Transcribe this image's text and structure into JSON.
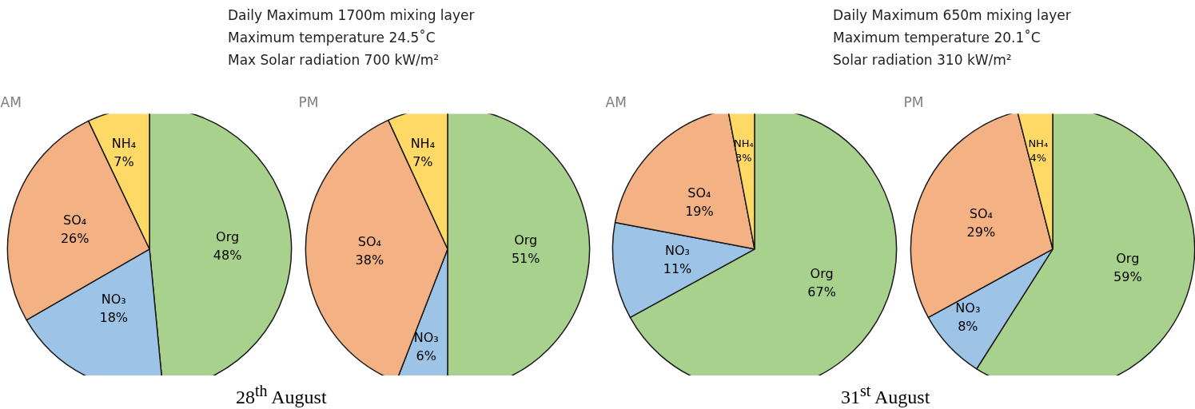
{
  "chart_data": [
    {
      "type": "pie",
      "title": "AM",
      "categories": [
        "Org",
        "NO₃",
        "SO₄",
        "NH₄"
      ],
      "values": [
        48,
        18,
        26,
        7
      ],
      "value_labels": [
        "48%",
        "18%",
        "26%",
        "7%"
      ],
      "colors": [
        "#a9d18e",
        "#9dc3e6",
        "#f4b183",
        "#ffd966"
      ],
      "legend": false,
      "annotations": [
        "Daily Maximum 1700m mixing layer",
        "Maximum temperature 24.5˚C",
        "Max Solar radiation 700 kW/m²",
        "28$^{th}$ August"
      ]
    },
    {
      "type": "pie",
      "title": "PM",
      "categories": [
        "Org",
        "NO₃",
        "SO₄",
        "NH₄"
      ],
      "values": [
        51,
        6,
        38,
        7
      ],
      "value_labels": [
        "51%",
        "6%",
        "38%",
        "7%"
      ],
      "colors": [
        "#a9d18e",
        "#9dc3e6",
        "#f4b183",
        "#ffd966"
      ],
      "legend": false
    },
    {
      "type": "pie",
      "title": "AM",
      "categories": [
        "Org",
        "NO₃",
        "SO₄",
        "NH₄"
      ],
      "values": [
        67,
        11,
        19,
        3
      ],
      "value_labels": [
        "67%",
        "11%",
        "19%",
        "3%"
      ],
      "colors": [
        "#a9d18e",
        "#9dc3e6",
        "#f4b183",
        "#ffd966"
      ],
      "legend": false,
      "annotations": [
        "Daily Maximum 650m mixing layer",
        "Maximum temperature 20.1˚C",
        "Solar radiation 310 kW/m²",
        "31$^{st}$ August"
      ]
    },
    {
      "type": "pie",
      "title": "PM",
      "categories": [
        "Org",
        "NO₃",
        "SO₄",
        "NH₄"
      ],
      "values": [
        59,
        8,
        29,
        4
      ],
      "value_labels": [
        "59%",
        "8%",
        "29%",
        "4%"
      ],
      "colors": [
        "#a9d18e",
        "#9dc3e6",
        "#f4b183",
        "#ffd966"
      ],
      "legend": false
    }
  ]
}
